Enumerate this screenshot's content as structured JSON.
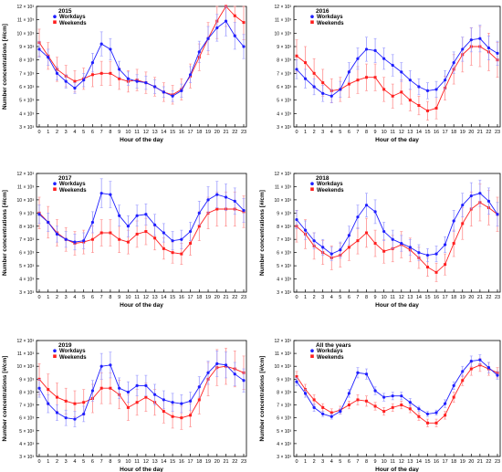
{
  "colors": {
    "workdays": "#1f1fff",
    "weekends": "#ff1f1f",
    "workdays_err": "#9a9aff",
    "weekends_err": "#ff8c8c"
  },
  "chart_data": [
    {
      "type": "line",
      "title": "2015",
      "xlabel": "Hour of the day",
      "ylabel": "Number concentrations [#/cm]",
      "ylim": [
        3,
        12
      ],
      "y_ticks": [
        "3 × 10³",
        "4 × 10³",
        "5 × 10³",
        "6 × 10³",
        "7 × 10³",
        "8 × 10³",
        "9 × 10³",
        "10 × 10³",
        "11 × 10³",
        "12 × 10³"
      ],
      "x": [
        "0",
        "1",
        "2",
        "3",
        "4",
        "5",
        "6",
        "7",
        "8",
        "9",
        "10",
        "11",
        "12",
        "13",
        "14",
        "15",
        "16",
        "17",
        "18",
        "19",
        "20",
        "21",
        "22",
        "23"
      ],
      "legend_position": "top-left",
      "series": [
        {
          "name": "Workdays",
          "values": [
            8.8,
            8.2,
            7.0,
            6.4,
            5.9,
            6.5,
            7.8,
            9.2,
            8.8,
            7.3,
            6.6,
            6.4,
            6.3,
            6.0,
            5.6,
            5.3,
            5.7,
            6.9,
            8.6,
            9.6,
            10.4,
            10.9,
            9.8,
            9.0
          ],
          "err": [
            0.6,
            0.6,
            0.5,
            0.5,
            0.4,
            0.5,
            0.7,
            0.9,
            0.8,
            0.6,
            0.5,
            0.5,
            0.5,
            0.5,
            0.4,
            0.4,
            0.5,
            0.6,
            0.8,
            0.9,
            1.0,
            1.1,
            1.0,
            0.9
          ]
        },
        {
          "name": "Weekends",
          "values": [
            9.3,
            8.3,
            7.3,
            6.8,
            6.4,
            6.6,
            6.9,
            7.0,
            7.0,
            6.6,
            6.4,
            6.5,
            6.3,
            6.0,
            5.6,
            5.4,
            5.8,
            6.8,
            8.2,
            9.6,
            10.9,
            12.0,
            11.3,
            10.8
          ],
          "err": [
            1.0,
            1.0,
            0.9,
            0.8,
            0.8,
            0.8,
            0.9,
            0.9,
            0.9,
            0.8,
            0.8,
            0.8,
            0.8,
            0.7,
            0.7,
            0.7,
            0.8,
            0.9,
            1.0,
            1.2,
            1.3,
            1.5,
            1.4,
            1.3
          ]
        }
      ]
    },
    {
      "type": "line",
      "title": "2016",
      "xlabel": "Hour of the day",
      "ylabel": "",
      "ylim": [
        3,
        12
      ],
      "y_ticks": [
        "3 × 10³",
        "4 × 10³",
        "5 × 10³",
        "6 × 10³",
        "7 × 10³",
        "8 × 10³",
        "9 × 10³",
        "10 × 10³",
        "11 × 10³",
        "12 × 10³"
      ],
      "x": [
        "0",
        "1",
        "2",
        "3",
        "4",
        "5",
        "6",
        "7",
        "8",
        "9",
        "10",
        "11",
        "12",
        "13",
        "14",
        "15",
        "16",
        "17",
        "18",
        "19",
        "20",
        "21",
        "22",
        "23"
      ],
      "legend_position": "top-left",
      "series": [
        {
          "name": "Workdays",
          "values": [
            7.3,
            6.6,
            6.0,
            5.5,
            5.3,
            5.8,
            7.1,
            8.1,
            8.8,
            8.7,
            8.1,
            7.6,
            7.1,
            6.5,
            6.0,
            5.7,
            5.8,
            6.5,
            7.8,
            8.8,
            9.5,
            9.6,
            8.9,
            8.5
          ],
          "err": [
            0.7,
            0.7,
            0.6,
            0.6,
            0.5,
            0.6,
            0.7,
            0.8,
            0.9,
            0.9,
            0.8,
            0.8,
            0.7,
            0.7,
            0.6,
            0.6,
            0.6,
            0.7,
            0.8,
            0.9,
            0.9,
            1.0,
            0.9,
            0.9
          ]
        },
        {
          "name": "Weekends",
          "values": [
            8.3,
            7.8,
            7.0,
            6.3,
            5.7,
            5.8,
            6.2,
            6.5,
            6.7,
            6.7,
            5.8,
            5.3,
            5.6,
            5.0,
            4.6,
            4.2,
            4.4,
            5.9,
            7.3,
            8.4,
            9.0,
            9.0,
            8.6,
            8.0
          ],
          "err": [
            1.2,
            1.2,
            1.1,
            1.0,
            0.9,
            0.9,
            1.0,
            1.0,
            1.0,
            1.0,
            0.9,
            0.9,
            0.9,
            0.8,
            0.7,
            0.7,
            0.8,
            0.9,
            1.1,
            1.3,
            1.4,
            1.5,
            1.4,
            1.3
          ]
        }
      ]
    },
    {
      "type": "line",
      "title": "2017",
      "xlabel": "Hour of the day",
      "ylabel": "Number concentrations [#/cm]",
      "ylim": [
        3,
        12
      ],
      "y_ticks": [
        "3 × 10³",
        "4 × 10³",
        "5 × 10³",
        "6 × 10³",
        "7 × 10³",
        "8 × 10³",
        "9 × 10³",
        "10 × 10³",
        "11 × 10³",
        "12 × 10³"
      ],
      "x": [
        "0",
        "1",
        "2",
        "3",
        "4",
        "5",
        "6",
        "7",
        "8",
        "9",
        "10",
        "11",
        "12",
        "13",
        "14",
        "15",
        "16",
        "17",
        "18",
        "19",
        "20",
        "21",
        "22",
        "23"
      ],
      "legend_position": "top-left",
      "series": [
        {
          "name": "Workdays",
          "values": [
            8.9,
            8.3,
            7.4,
            7.0,
            6.8,
            6.9,
            8.3,
            10.5,
            10.4,
            8.8,
            8.0,
            8.8,
            8.9,
            8.1,
            7.5,
            6.9,
            7.0,
            7.6,
            9.0,
            10.0,
            10.4,
            10.2,
            9.9,
            9.2
          ],
          "err": [
            0.7,
            0.7,
            0.6,
            0.6,
            0.6,
            0.6,
            0.8,
            1.1,
            1.0,
            0.8,
            0.8,
            0.8,
            0.8,
            0.8,
            0.7,
            0.7,
            0.7,
            0.7,
            0.9,
            1.0,
            1.0,
            1.0,
            1.0,
            0.9
          ]
        },
        {
          "name": "Weekends",
          "values": [
            9.0,
            8.3,
            7.5,
            7.0,
            6.7,
            6.8,
            7.0,
            7.5,
            7.5,
            7.0,
            6.8,
            7.4,
            7.6,
            7.1,
            6.3,
            6.0,
            5.9,
            6.7,
            8.0,
            9.0,
            9.3,
            9.3,
            9.3,
            9.1
          ],
          "err": [
            1.2,
            1.2,
            1.0,
            0.9,
            0.9,
            0.9,
            1.0,
            1.0,
            1.0,
            1.0,
            0.9,
            1.0,
            1.0,
            0.9,
            0.8,
            0.8,
            0.8,
            0.9,
            1.1,
            1.2,
            1.3,
            1.3,
            1.3,
            1.2
          ]
        }
      ]
    },
    {
      "type": "line",
      "title": "2018",
      "xlabel": "Hour of the day",
      "ylabel": "Number concentrations [#/cm]",
      "ylim": [
        3,
        12
      ],
      "y_ticks": [
        "3 × 10³",
        "4 × 10³",
        "5 × 10³",
        "6 × 10³",
        "7 × 10³",
        "8 × 10³",
        "9 × 10³",
        "10 × 10³",
        "11 × 10³",
        "12 × 10³"
      ],
      "x": [
        "0",
        "1",
        "2",
        "3",
        "4",
        "5",
        "6",
        "7",
        "8",
        "9",
        "10",
        "11",
        "12",
        "13",
        "14",
        "15",
        "16",
        "17",
        "18",
        "19",
        "20",
        "21",
        "22",
        "23"
      ],
      "legend_position": "top-left",
      "series": [
        {
          "name": "Workdays",
          "values": [
            8.5,
            7.7,
            6.9,
            6.4,
            5.9,
            6.2,
            7.3,
            8.7,
            9.6,
            9.1,
            7.6,
            7.0,
            6.7,
            6.4,
            6.0,
            5.8,
            5.9,
            6.6,
            8.4,
            9.6,
            10.3,
            10.5,
            9.9,
            8.9
          ],
          "err": [
            0.7,
            0.7,
            0.6,
            0.6,
            0.5,
            0.6,
            0.7,
            0.9,
            0.9,
            0.9,
            0.7,
            0.7,
            0.6,
            0.6,
            0.6,
            0.5,
            0.6,
            0.6,
            0.8,
            0.9,
            1.0,
            1.0,
            1.0,
            0.9
          ]
        },
        {
          "name": "Weekends",
          "values": [
            8.0,
            7.4,
            6.5,
            6.0,
            5.6,
            5.8,
            6.4,
            6.9,
            7.5,
            6.7,
            6.1,
            6.3,
            6.6,
            6.2,
            5.6,
            4.9,
            4.5,
            5.1,
            6.7,
            8.2,
            9.3,
            9.8,
            9.4,
            8.9
          ],
          "err": [
            1.2,
            1.1,
            1.0,
            0.9,
            0.9,
            0.9,
            1.0,
            1.0,
            1.1,
            1.0,
            0.9,
            1.0,
            1.0,
            0.9,
            0.8,
            0.7,
            0.7,
            0.8,
            1.0,
            1.2,
            1.3,
            1.4,
            1.3,
            1.3
          ]
        }
      ]
    },
    {
      "type": "line",
      "title": "2019",
      "xlabel": "Hour of the day",
      "ylabel": "Number concentrations [#/cm]",
      "ylim": [
        3,
        12
      ],
      "y_ticks": [
        "3 × 10³",
        "4 × 10³",
        "5 × 10³",
        "6 × 10³",
        "7 × 10³",
        "8 × 10³",
        "9 × 10³",
        "10 × 10³",
        "11 × 10³",
        "12 × 10³"
      ],
      "x": [
        "0",
        "1",
        "2",
        "3",
        "4",
        "5",
        "6",
        "7",
        "8",
        "9",
        "10",
        "11",
        "12",
        "13",
        "14",
        "15",
        "16",
        "17",
        "18",
        "19",
        "20",
        "21",
        "22",
        "23"
      ],
      "legend_position": "top-left",
      "series": [
        {
          "name": "Workdays",
          "values": [
            8.3,
            7.1,
            6.4,
            6.0,
            5.9,
            6.3,
            8.1,
            10.0,
            10.1,
            8.3,
            8.0,
            8.5,
            8.5,
            7.8,
            7.4,
            7.2,
            7.1,
            7.3,
            8.4,
            9.5,
            10.2,
            10.1,
            9.4,
            8.9
          ],
          "err": [
            0.7,
            0.7,
            0.6,
            0.6,
            0.6,
            0.6,
            0.8,
            1.0,
            1.0,
            0.8,
            0.8,
            0.8,
            0.8,
            0.8,
            0.7,
            0.7,
            0.7,
            0.7,
            0.8,
            0.9,
            1.0,
            1.0,
            0.9,
            0.9
          ]
        },
        {
          "name": "Weekends",
          "values": [
            9.0,
            8.2,
            7.6,
            7.3,
            7.1,
            7.2,
            7.5,
            8.3,
            8.3,
            7.8,
            6.8,
            7.2,
            7.6,
            7.2,
            6.5,
            6.1,
            6.0,
            6.2,
            7.4,
            9.0,
            9.9,
            10.0,
            9.8,
            9.5
          ],
          "err": [
            1.2,
            1.2,
            1.1,
            1.0,
            1.0,
            1.0,
            1.1,
            1.2,
            1.2,
            1.1,
            1.0,
            1.0,
            1.1,
            1.0,
            0.9,
            0.9,
            0.9,
            0.9,
            1.1,
            1.3,
            1.4,
            1.4,
            1.4,
            1.3
          ]
        }
      ]
    },
    {
      "type": "line",
      "title": "All the years",
      "xlabel": "Hour of the day",
      "ylabel": "Number concentrations [#/cm]",
      "ylim": [
        3,
        12
      ],
      "y_ticks": [
        "3 × 10³",
        "4 × 10³",
        "5 × 10³",
        "6 × 10³",
        "7 × 10³",
        "8 × 10³",
        "9 × 10³",
        "10 × 10³",
        "11 × 10³",
        "12 × 10³"
      ],
      "x": [
        "0",
        "1",
        "2",
        "3",
        "4",
        "5",
        "6",
        "7",
        "8",
        "9",
        "10",
        "11",
        "12",
        "13",
        "14",
        "15",
        "16",
        "17",
        "18",
        "19",
        "20",
        "21",
        "22",
        "23"
      ],
      "legend_position": "top-left",
      "series": [
        {
          "name": "Workdays",
          "values": [
            8.8,
            7.9,
            6.8,
            6.3,
            6.1,
            6.5,
            7.9,
            9.5,
            9.4,
            8.1,
            7.6,
            7.7,
            7.7,
            7.2,
            6.7,
            6.3,
            6.4,
            7.1,
            8.5,
            9.6,
            10.4,
            10.5,
            9.9,
            9.3
          ],
          "err": [
            0.3,
            0.3,
            0.3,
            0.2,
            0.2,
            0.2,
            0.3,
            0.4,
            0.4,
            0.3,
            0.3,
            0.3,
            0.3,
            0.3,
            0.2,
            0.2,
            0.2,
            0.3,
            0.3,
            0.4,
            0.4,
            0.4,
            0.4,
            0.3
          ]
        },
        {
          "name": "Weekends",
          "values": [
            9.2,
            8.2,
            7.4,
            6.8,
            6.4,
            6.6,
            7.0,
            7.4,
            7.3,
            6.9,
            6.5,
            6.8,
            7.0,
            6.7,
            6.1,
            5.6,
            5.6,
            6.2,
            7.6,
            8.9,
            9.8,
            10.1,
            9.8,
            9.5
          ],
          "err": [
            0.4,
            0.4,
            0.4,
            0.3,
            0.3,
            0.3,
            0.3,
            0.4,
            0.4,
            0.3,
            0.3,
            0.3,
            0.3,
            0.3,
            0.3,
            0.3,
            0.3,
            0.3,
            0.4,
            0.4,
            0.5,
            0.5,
            0.5,
            0.4
          ]
        }
      ]
    }
  ]
}
